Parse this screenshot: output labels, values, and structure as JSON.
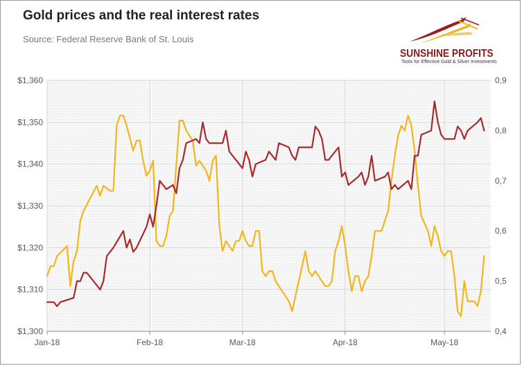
{
  "header": {
    "title": "Gold prices and the real interest rates",
    "subtitle": "Source: Federal Reserve Bank of St. Louis"
  },
  "logo": {
    "name": "SUNSHINE PROFITS",
    "tagline": "Tools for Effective Gold & Silver Investments"
  },
  "colors": {
    "gold_price": "#A8282C",
    "real_rate": "#F2B51B",
    "grid": "#D9D9D9",
    "plot_bg": "#F4F4F4",
    "axis_text": "#595959"
  },
  "chart_data": {
    "type": "line",
    "x_tick_labels": [
      "Jan-18",
      "Feb-18",
      "Mar-18",
      "Apr-18",
      "May-18"
    ],
    "x_tick_days": [
      0,
      31,
      59,
      90,
      120
    ],
    "x_range_days": [
      0,
      134
    ],
    "y_left": {
      "ticks": [
        "$1,300",
        "$1,310",
        "$1,320",
        "$1,330",
        "$1,340",
        "$1,350",
        "$1,360"
      ],
      "range": [
        1300,
        1360
      ]
    },
    "y_right": {
      "ticks": [
        "0,4",
        "0,5",
        "0,6",
        "0,7",
        "0,8",
        "0,9"
      ],
      "range": [
        0.4,
        0.9
      ]
    },
    "grid": true,
    "legend": "none",
    "series": [
      {
        "axis": "left",
        "color_key": "gold_price",
        "points": [
          [
            0,
            1307
          ],
          [
            1,
            1307
          ],
          [
            2,
            1307
          ],
          [
            3,
            1306
          ],
          [
            4,
            1307
          ],
          [
            8,
            1308
          ],
          [
            9,
            1312
          ],
          [
            10,
            1312
          ],
          [
            11,
            1314
          ],
          [
            12,
            1314
          ],
          [
            16,
            1310
          ],
          [
            17,
            1312
          ],
          [
            18,
            1318
          ],
          [
            19,
            1319
          ],
          [
            20,
            1320
          ],
          [
            23,
            1324
          ],
          [
            24,
            1320
          ],
          [
            25,
            1322
          ],
          [
            26,
            1319
          ],
          [
            27,
            1320
          ],
          [
            30,
            1325
          ],
          [
            31,
            1328
          ],
          [
            32,
            1325
          ],
          [
            33,
            1330
          ],
          [
            34,
            1336
          ],
          [
            36,
            1334
          ],
          [
            38,
            1335
          ],
          [
            39,
            1333
          ],
          [
            40,
            1339
          ],
          [
            41,
            1341
          ],
          [
            42,
            1345
          ],
          [
            45,
            1346
          ],
          [
            46,
            1345
          ],
          [
            47,
            1350
          ],
          [
            48,
            1346
          ],
          [
            49,
            1345
          ],
          [
            53,
            1345
          ],
          [
            54,
            1348
          ],
          [
            55,
            1343
          ],
          [
            56,
            1342
          ],
          [
            59,
            1339
          ],
          [
            60,
            1343
          ],
          [
            61,
            1341
          ],
          [
            62,
            1337
          ],
          [
            63,
            1340
          ],
          [
            66,
            1341
          ],
          [
            67,
            1343
          ],
          [
            68,
            1342
          ],
          [
            69,
            1341
          ],
          [
            70,
            1345
          ],
          [
            73,
            1344
          ],
          [
            74,
            1342
          ],
          [
            75,
            1341
          ],
          [
            76,
            1344
          ],
          [
            80,
            1344
          ],
          [
            81,
            1349
          ],
          [
            82,
            1348
          ],
          [
            83,
            1346
          ],
          [
            84,
            1341
          ],
          [
            85,
            1341
          ],
          [
            88,
            1344
          ],
          [
            89,
            1337
          ],
          [
            90,
            1338
          ],
          [
            91,
            1335
          ],
          [
            94,
            1337
          ],
          [
            95,
            1338
          ],
          [
            96,
            1335
          ],
          [
            97,
            1337
          ],
          [
            98,
            1342
          ],
          [
            99,
            1336
          ],
          [
            102,
            1337
          ],
          [
            103,
            1338
          ],
          [
            104,
            1334
          ],
          [
            105,
            1335
          ],
          [
            106,
            1334
          ],
          [
            109,
            1336
          ],
          [
            110,
            1334
          ],
          [
            111,
            1342
          ],
          [
            112,
            1342
          ],
          [
            113,
            1347
          ],
          [
            116,
            1348
          ],
          [
            117,
            1355
          ],
          [
            118,
            1350
          ],
          [
            119,
            1347
          ],
          [
            120,
            1346
          ],
          [
            123,
            1346
          ],
          [
            124,
            1349
          ],
          [
            125,
            1348
          ],
          [
            126,
            1346
          ],
          [
            127,
            1348
          ],
          [
            130,
            1350
          ],
          [
            131,
            1351
          ],
          [
            132,
            1348
          ]
        ]
      },
      {
        "axis": "right",
        "color_key": "real_rate",
        "points": [
          [
            0,
            0.51
          ],
          [
            1,
            0.53
          ],
          [
            2,
            0.53
          ],
          [
            3,
            0.55
          ],
          [
            6,
            0.57
          ],
          [
            7,
            0.49
          ],
          [
            8,
            0.54
          ],
          [
            9,
            0.56
          ],
          [
            10,
            0.62
          ],
          [
            11,
            0.64
          ],
          [
            15,
            0.69
          ],
          [
            16,
            0.67
          ],
          [
            17,
            0.69
          ],
          [
            19,
            0.68
          ],
          [
            20,
            0.68
          ],
          [
            21,
            0.81
          ],
          [
            22,
            0.83
          ],
          [
            23,
            0.83
          ],
          [
            24,
            0.81
          ],
          [
            26,
            0.76
          ],
          [
            27,
            0.78
          ],
          [
            28,
            0.78
          ],
          [
            29,
            0.74
          ],
          [
            30,
            0.71
          ],
          [
            31,
            0.72
          ],
          [
            32,
            0.74
          ],
          [
            33,
            0.58
          ],
          [
            34,
            0.57
          ],
          [
            35,
            0.57
          ],
          [
            36,
            0.59
          ],
          [
            37,
            0.63
          ],
          [
            38,
            0.64
          ],
          [
            40,
            0.82
          ],
          [
            41,
            0.82
          ],
          [
            42,
            0.8
          ],
          [
            44,
            0.78
          ],
          [
            45,
            0.73
          ],
          [
            46,
            0.74
          ],
          [
            47,
            0.73
          ],
          [
            48,
            0.72
          ],
          [
            49,
            0.7
          ],
          [
            50,
            0.74
          ],
          [
            51,
            0.75
          ],
          [
            52,
            0.61
          ],
          [
            53,
            0.56
          ],
          [
            54,
            0.58
          ],
          [
            55,
            0.57
          ],
          [
            56,
            0.56
          ],
          [
            57,
            0.58
          ],
          [
            58,
            0.58
          ],
          [
            59,
            0.6
          ],
          [
            60,
            0.58
          ],
          [
            61,
            0.57
          ],
          [
            62,
            0.57
          ],
          [
            63,
            0.6
          ],
          [
            64,
            0.6
          ],
          [
            65,
            0.52
          ],
          [
            66,
            0.51
          ],
          [
            67,
            0.52
          ],
          [
            68,
            0.52
          ],
          [
            69,
            0.5
          ],
          [
            70,
            0.49
          ],
          [
            71,
            0.48
          ],
          [
            72,
            0.47
          ],
          [
            73,
            0.46
          ],
          [
            74,
            0.44
          ],
          [
            75,
            0.47
          ],
          [
            77,
            0.53
          ],
          [
            78,
            0.56
          ],
          [
            79,
            0.52
          ],
          [
            80,
            0.51
          ],
          [
            81,
            0.52
          ],
          [
            82,
            0.51
          ],
          [
            84,
            0.49
          ],
          [
            85,
            0.49
          ],
          [
            86,
            0.5
          ],
          [
            87,
            0.56
          ],
          [
            88,
            0.58
          ],
          [
            89,
            0.61
          ],
          [
            90,
            0.57
          ],
          [
            91,
            0.52
          ],
          [
            92,
            0.48
          ],
          [
            93,
            0.51
          ],
          [
            94,
            0.51
          ],
          [
            95,
            0.48
          ],
          [
            96,
            0.5
          ],
          [
            97,
            0.51
          ],
          [
            98,
            0.55
          ],
          [
            99,
            0.6
          ],
          [
            101,
            0.6
          ],
          [
            102,
            0.62
          ],
          [
            103,
            0.64
          ],
          [
            104,
            0.7
          ],
          [
            105,
            0.75
          ],
          [
            106,
            0.79
          ],
          [
            107,
            0.81
          ],
          [
            108,
            0.8
          ],
          [
            109,
            0.83
          ],
          [
            110,
            0.81
          ],
          [
            111,
            0.76
          ],
          [
            112,
            0.69
          ],
          [
            113,
            0.63
          ],
          [
            115,
            0.6
          ],
          [
            116,
            0.57
          ],
          [
            117,
            0.61
          ],
          [
            118,
            0.59
          ],
          [
            119,
            0.56
          ],
          [
            120,
            0.55
          ],
          [
            121,
            0.56
          ],
          [
            122,
            0.56
          ],
          [
            123,
            0.51
          ],
          [
            124,
            0.44
          ],
          [
            125,
            0.43
          ],
          [
            126,
            0.5
          ],
          [
            127,
            0.46
          ],
          [
            128,
            0.46
          ],
          [
            129,
            0.46
          ],
          [
            130,
            0.45
          ],
          [
            131,
            0.48
          ],
          [
            132,
            0.55
          ]
        ]
      }
    ]
  }
}
